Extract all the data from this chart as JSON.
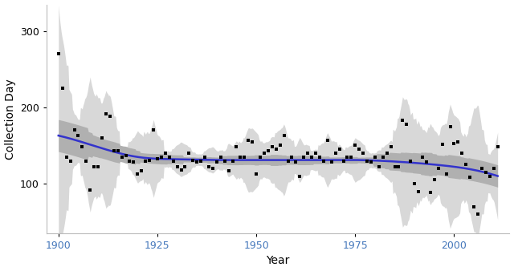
{
  "xlabel": "Year",
  "ylabel": "Collection Day",
  "x_ticks": [
    1900,
    1925,
    1950,
    1975,
    2000
  ],
  "y_ticks": [
    100,
    200,
    300
  ],
  "xlim": [
    1897,
    2014
  ],
  "ylim": [
    35,
    335
  ],
  "scatter_color": "black",
  "scatter_size": 7,
  "line_color": "#3333cc",
  "line_width": 1.8,
  "ci_inner_color": "#b0b0b0",
  "ci_outer_color": "#d8d8d8",
  "background_color": "#ffffff",
  "years": [
    1900,
    1901,
    1902,
    1903,
    1904,
    1905,
    1906,
    1907,
    1908,
    1909,
    1910,
    1911,
    1912,
    1913,
    1914,
    1915,
    1916,
    1917,
    1918,
    1919,
    1920,
    1921,
    1922,
    1923,
    1924,
    1925,
    1926,
    1927,
    1928,
    1929,
    1930,
    1931,
    1932,
    1933,
    1934,
    1935,
    1936,
    1937,
    1938,
    1939,
    1940,
    1941,
    1942,
    1943,
    1944,
    1945,
    1946,
    1947,
    1948,
    1949,
    1950,
    1951,
    1952,
    1953,
    1954,
    1955,
    1956,
    1957,
    1958,
    1959,
    1960,
    1961,
    1962,
    1963,
    1964,
    1965,
    1966,
    1967,
    1968,
    1969,
    1970,
    1971,
    1972,
    1973,
    1974,
    1975,
    1976,
    1977,
    1978,
    1979,
    1980,
    1981,
    1982,
    1983,
    1984,
    1985,
    1986,
    1987,
    1988,
    1989,
    1990,
    1991,
    1992,
    1993,
    1994,
    1995,
    1996,
    1997,
    1998,
    1999,
    2000,
    2001,
    2002,
    2003,
    2004,
    2005,
    2006,
    2007,
    2008,
    2009,
    2010,
    2011
  ],
  "values": [
    270,
    225,
    135,
    130,
    170,
    163,
    148,
    130,
    92,
    122,
    122,
    160,
    192,
    188,
    143,
    143,
    135,
    137,
    130,
    128,
    113,
    117,
    130,
    131,
    170,
    133,
    135,
    140,
    135,
    130,
    122,
    118,
    122,
    140,
    131,
    128,
    130,
    135,
    122,
    120,
    128,
    135,
    130,
    117,
    130,
    148,
    135,
    135,
    157,
    155,
    113,
    135,
    140,
    143,
    148,
    145,
    150,
    163,
    130,
    135,
    128,
    110,
    135,
    140,
    135,
    140,
    135,
    130,
    157,
    128,
    140,
    145,
    130,
    135,
    135,
    150,
    145,
    140,
    130,
    128,
    135,
    122,
    135,
    140,
    148,
    122,
    122,
    183,
    178,
    130,
    100,
    90,
    135,
    128,
    88,
    105,
    120,
    152,
    113,
    175,
    153,
    155,
    140,
    125,
    108,
    70,
    60,
    120,
    115,
    110,
    120,
    148
  ]
}
